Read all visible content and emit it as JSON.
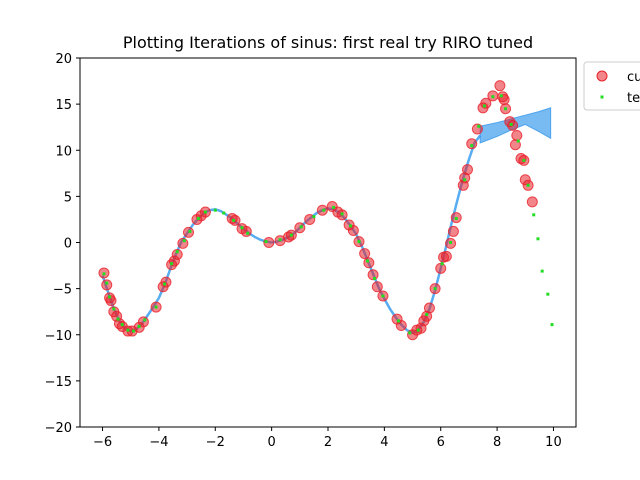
{
  "chart_data": {
    "type": "scatter",
    "title": "Plotting Iterations of sinus: first real try RIRO tuned",
    "xlabel": "",
    "ylabel": "",
    "xlim": [
      -6.8,
      10.8
    ],
    "ylim": [
      -20,
      20
    ],
    "x_ticks": [
      -6,
      -4,
      -2,
      0,
      2,
      4,
      6,
      8,
      10
    ],
    "y_ticks": [
      -20,
      -15,
      -10,
      -5,
      0,
      5,
      10,
      15,
      20
    ],
    "grid": false,
    "legend_placement": "outside-top-right",
    "legend": [
      {
        "label": "cu",
        "marker": "circle",
        "color": "#e8212a"
      },
      {
        "label": "te",
        "marker": "square",
        "color": "#22dd22"
      }
    ],
    "series": [
      {
        "name": "cu",
        "kind": "markers",
        "color": "#e8212a",
        "points": [
          [
            -5.95,
            -3.3
          ],
          [
            -5.85,
            -4.6
          ],
          [
            -5.75,
            -6.0
          ],
          [
            -5.7,
            -6.3
          ],
          [
            -5.6,
            -7.5
          ],
          [
            -5.5,
            -8.0
          ],
          [
            -5.4,
            -8.8
          ],
          [
            -5.3,
            -9.1
          ],
          [
            -5.1,
            -9.6
          ],
          [
            -4.95,
            -9.6
          ],
          [
            -4.7,
            -9.2
          ],
          [
            -4.55,
            -8.6
          ],
          [
            -4.1,
            -7.0
          ],
          [
            -3.85,
            -4.8
          ],
          [
            -3.75,
            -4.3
          ],
          [
            -3.55,
            -2.4
          ],
          [
            -3.45,
            -2.0
          ],
          [
            -3.35,
            -1.3
          ],
          [
            -3.15,
            -0.1
          ],
          [
            -2.95,
            1.1
          ],
          [
            -2.65,
            2.5
          ],
          [
            -2.5,
            2.9
          ],
          [
            -2.35,
            3.3
          ],
          [
            -1.4,
            2.6
          ],
          [
            -1.3,
            2.4
          ],
          [
            -1.05,
            1.5
          ],
          [
            -0.9,
            1.2
          ],
          [
            -0.1,
            0.0
          ],
          [
            0.3,
            0.2
          ],
          [
            0.6,
            0.6
          ],
          [
            0.7,
            0.8
          ],
          [
            1.0,
            1.6
          ],
          [
            1.35,
            2.5
          ],
          [
            1.8,
            3.5
          ],
          [
            2.15,
            3.9
          ],
          [
            2.35,
            3.3
          ],
          [
            2.5,
            3.0
          ],
          [
            2.75,
            1.9
          ],
          [
            2.9,
            1.3
          ],
          [
            3.1,
            0.1
          ],
          [
            3.3,
            -1.2
          ],
          [
            3.45,
            -2.2
          ],
          [
            3.6,
            -3.5
          ],
          [
            3.75,
            -4.8
          ],
          [
            3.95,
            -5.8
          ],
          [
            4.45,
            -8.3
          ],
          [
            4.6,
            -9.0
          ],
          [
            5.0,
            -10.0
          ],
          [
            5.15,
            -9.5
          ],
          [
            5.3,
            -9.3
          ],
          [
            5.4,
            -8.5
          ],
          [
            5.5,
            -8.0
          ],
          [
            5.6,
            -7.1
          ],
          [
            5.8,
            -5.0
          ],
          [
            6.0,
            -2.8
          ],
          [
            6.1,
            -1.6
          ],
          [
            6.2,
            -1.5
          ],
          [
            6.35,
            -0.1
          ],
          [
            6.45,
            1.2
          ],
          [
            6.55,
            2.7
          ],
          [
            6.8,
            6.2
          ],
          [
            6.85,
            7.0
          ],
          [
            6.95,
            7.9
          ],
          [
            7.1,
            10.7
          ],
          [
            7.3,
            12.3
          ],
          [
            7.5,
            14.6
          ],
          [
            7.6,
            15.1
          ],
          [
            7.85,
            15.9
          ],
          [
            8.1,
            17.0
          ],
          [
            8.2,
            15.8
          ],
          [
            8.25,
            15.5
          ],
          [
            8.3,
            14.5
          ],
          [
            8.45,
            13.1
          ],
          [
            8.55,
            12.7
          ],
          [
            8.7,
            11.6
          ],
          [
            8.65,
            10.6
          ],
          [
            8.85,
            9.1
          ],
          [
            8.95,
            8.9
          ],
          [
            9.0,
            6.8
          ],
          [
            9.1,
            6.2
          ],
          [
            9.25,
            4.4
          ]
        ]
      },
      {
        "name": "te",
        "kind": "small_markers",
        "color": "#22dd22",
        "points": [
          [
            -5.95,
            -3.4
          ],
          [
            -5.85,
            -4.4
          ],
          [
            -5.75,
            -5.9
          ],
          [
            -5.6,
            -7.2
          ],
          [
            -5.45,
            -8.3
          ],
          [
            -5.3,
            -8.9
          ],
          [
            -5.1,
            -9.5
          ],
          [
            -4.9,
            -9.6
          ],
          [
            -4.7,
            -9.1
          ],
          [
            -4.5,
            -8.4
          ],
          [
            -4.1,
            -7.0
          ],
          [
            -3.8,
            -4.5
          ],
          [
            -3.55,
            -2.3
          ],
          [
            -3.35,
            -1.0
          ],
          [
            -3.1,
            0.2
          ],
          [
            -2.9,
            1.2
          ],
          [
            -2.6,
            2.6
          ],
          [
            -2.35,
            3.3
          ],
          [
            -2.0,
            3.5
          ],
          [
            -1.7,
            3.2
          ],
          [
            -1.35,
            2.4
          ],
          [
            -1.05,
            1.6
          ],
          [
            -0.85,
            1.0
          ],
          [
            -0.2,
            0.1
          ],
          [
            0.3,
            0.3
          ],
          [
            0.7,
            0.8
          ],
          [
            1.05,
            1.7
          ],
          [
            1.5,
            2.8
          ],
          [
            1.85,
            3.5
          ],
          [
            2.2,
            3.8
          ],
          [
            2.5,
            3.1
          ],
          [
            2.8,
            1.8
          ],
          [
            3.1,
            0.1
          ],
          [
            3.4,
            -2.0
          ],
          [
            3.65,
            -3.9
          ],
          [
            3.95,
            -5.8
          ],
          [
            4.5,
            -8.5
          ],
          [
            4.9,
            -9.8
          ],
          [
            5.2,
            -9.5
          ],
          [
            5.5,
            -7.8
          ],
          [
            5.8,
            -5.0
          ],
          [
            6.05,
            -2.3
          ],
          [
            6.35,
            0.0
          ],
          [
            6.55,
            2.6
          ],
          [
            6.85,
            6.8
          ],
          [
            7.1,
            10.5
          ],
          [
            7.35,
            12.6
          ],
          [
            7.55,
            14.8
          ],
          [
            7.85,
            15.8
          ],
          [
            8.15,
            15.9
          ],
          [
            8.3,
            14.5
          ],
          [
            8.5,
            12.8
          ],
          [
            8.75,
            11.0
          ],
          [
            8.95,
            8.9
          ],
          [
            9.1,
            6.2
          ],
          [
            9.3,
            3.0
          ],
          [
            9.45,
            0.4
          ],
          [
            9.6,
            -3.1
          ],
          [
            9.8,
            -5.6
          ],
          [
            9.95,
            -8.9
          ]
        ]
      },
      {
        "name": "",
        "kind": "line",
        "color": "#1f90ee",
        "points": [
          [
            -6.0,
            -3.6
          ],
          [
            -5.8,
            -5.4
          ],
          [
            -5.6,
            -7.2
          ],
          [
            -5.4,
            -8.5
          ],
          [
            -5.2,
            -9.3
          ],
          [
            -5.0,
            -9.6
          ],
          [
            -4.8,
            -9.4
          ],
          [
            -4.6,
            -8.8
          ],
          [
            -4.4,
            -7.9
          ],
          [
            -4.2,
            -7.0
          ],
          [
            -4.0,
            -6.0
          ],
          [
            -3.8,
            -4.6
          ],
          [
            -3.6,
            -2.9
          ],
          [
            -3.4,
            -1.3
          ],
          [
            -3.2,
            0.1
          ],
          [
            -3.0,
            1.0
          ],
          [
            -2.8,
            1.9
          ],
          [
            -2.6,
            2.6
          ],
          [
            -2.4,
            3.2
          ],
          [
            -2.2,
            3.5
          ],
          [
            -2.0,
            3.6
          ],
          [
            -1.8,
            3.4
          ],
          [
            -1.6,
            3.0
          ],
          [
            -1.4,
            2.6
          ],
          [
            -1.2,
            2.0
          ],
          [
            -1.0,
            1.5
          ],
          [
            -0.8,
            1.0
          ],
          [
            -0.6,
            0.6
          ],
          [
            -0.4,
            0.3
          ],
          [
            -0.2,
            0.1
          ],
          [
            0.0,
            0.0
          ],
          [
            0.2,
            0.1
          ],
          [
            0.4,
            0.3
          ],
          [
            0.6,
            0.6
          ],
          [
            0.8,
            1.0
          ],
          [
            1.0,
            1.6
          ],
          [
            1.2,
            2.2
          ],
          [
            1.4,
            2.7
          ],
          [
            1.6,
            3.2
          ],
          [
            1.8,
            3.5
          ],
          [
            2.0,
            3.7
          ],
          [
            2.2,
            3.6
          ],
          [
            2.4,
            3.2
          ],
          [
            2.6,
            2.6
          ],
          [
            2.8,
            1.8
          ],
          [
            3.0,
            0.9
          ],
          [
            3.2,
            -0.4
          ],
          [
            3.4,
            -1.9
          ],
          [
            3.6,
            -3.4
          ],
          [
            3.8,
            -4.9
          ],
          [
            4.0,
            -6.1
          ],
          [
            4.2,
            -7.2
          ],
          [
            4.4,
            -8.1
          ],
          [
            4.6,
            -8.9
          ],
          [
            4.8,
            -9.5
          ],
          [
            5.0,
            -9.8
          ],
          [
            5.2,
            -9.5
          ],
          [
            5.4,
            -8.6
          ],
          [
            5.6,
            -7.2
          ],
          [
            5.8,
            -5.2
          ],
          [
            6.0,
            -2.8
          ],
          [
            6.2,
            -0.3
          ],
          [
            6.4,
            2.3
          ],
          [
            6.6,
            4.7
          ],
          [
            6.8,
            7.0
          ],
          [
            7.0,
            9.0
          ],
          [
            7.2,
            10.8
          ],
          [
            7.4,
            11.6
          ]
        ]
      },
      {
        "name": "",
        "kind": "uncertainty_band",
        "color": "#4ba3ee",
        "upper": [
          [
            7.4,
            12.6
          ],
          [
            8.0,
            13.0
          ],
          [
            8.5,
            13.4
          ],
          [
            9.0,
            13.8
          ],
          [
            9.5,
            14.2
          ],
          [
            9.9,
            14.6
          ]
        ],
        "lower": [
          [
            7.4,
            10.8
          ],
          [
            8.0,
            11.5
          ],
          [
            8.5,
            12.2
          ],
          [
            9.0,
            12.8
          ],
          [
            9.5,
            12.0
          ],
          [
            9.9,
            11.3
          ]
        ]
      }
    ]
  }
}
